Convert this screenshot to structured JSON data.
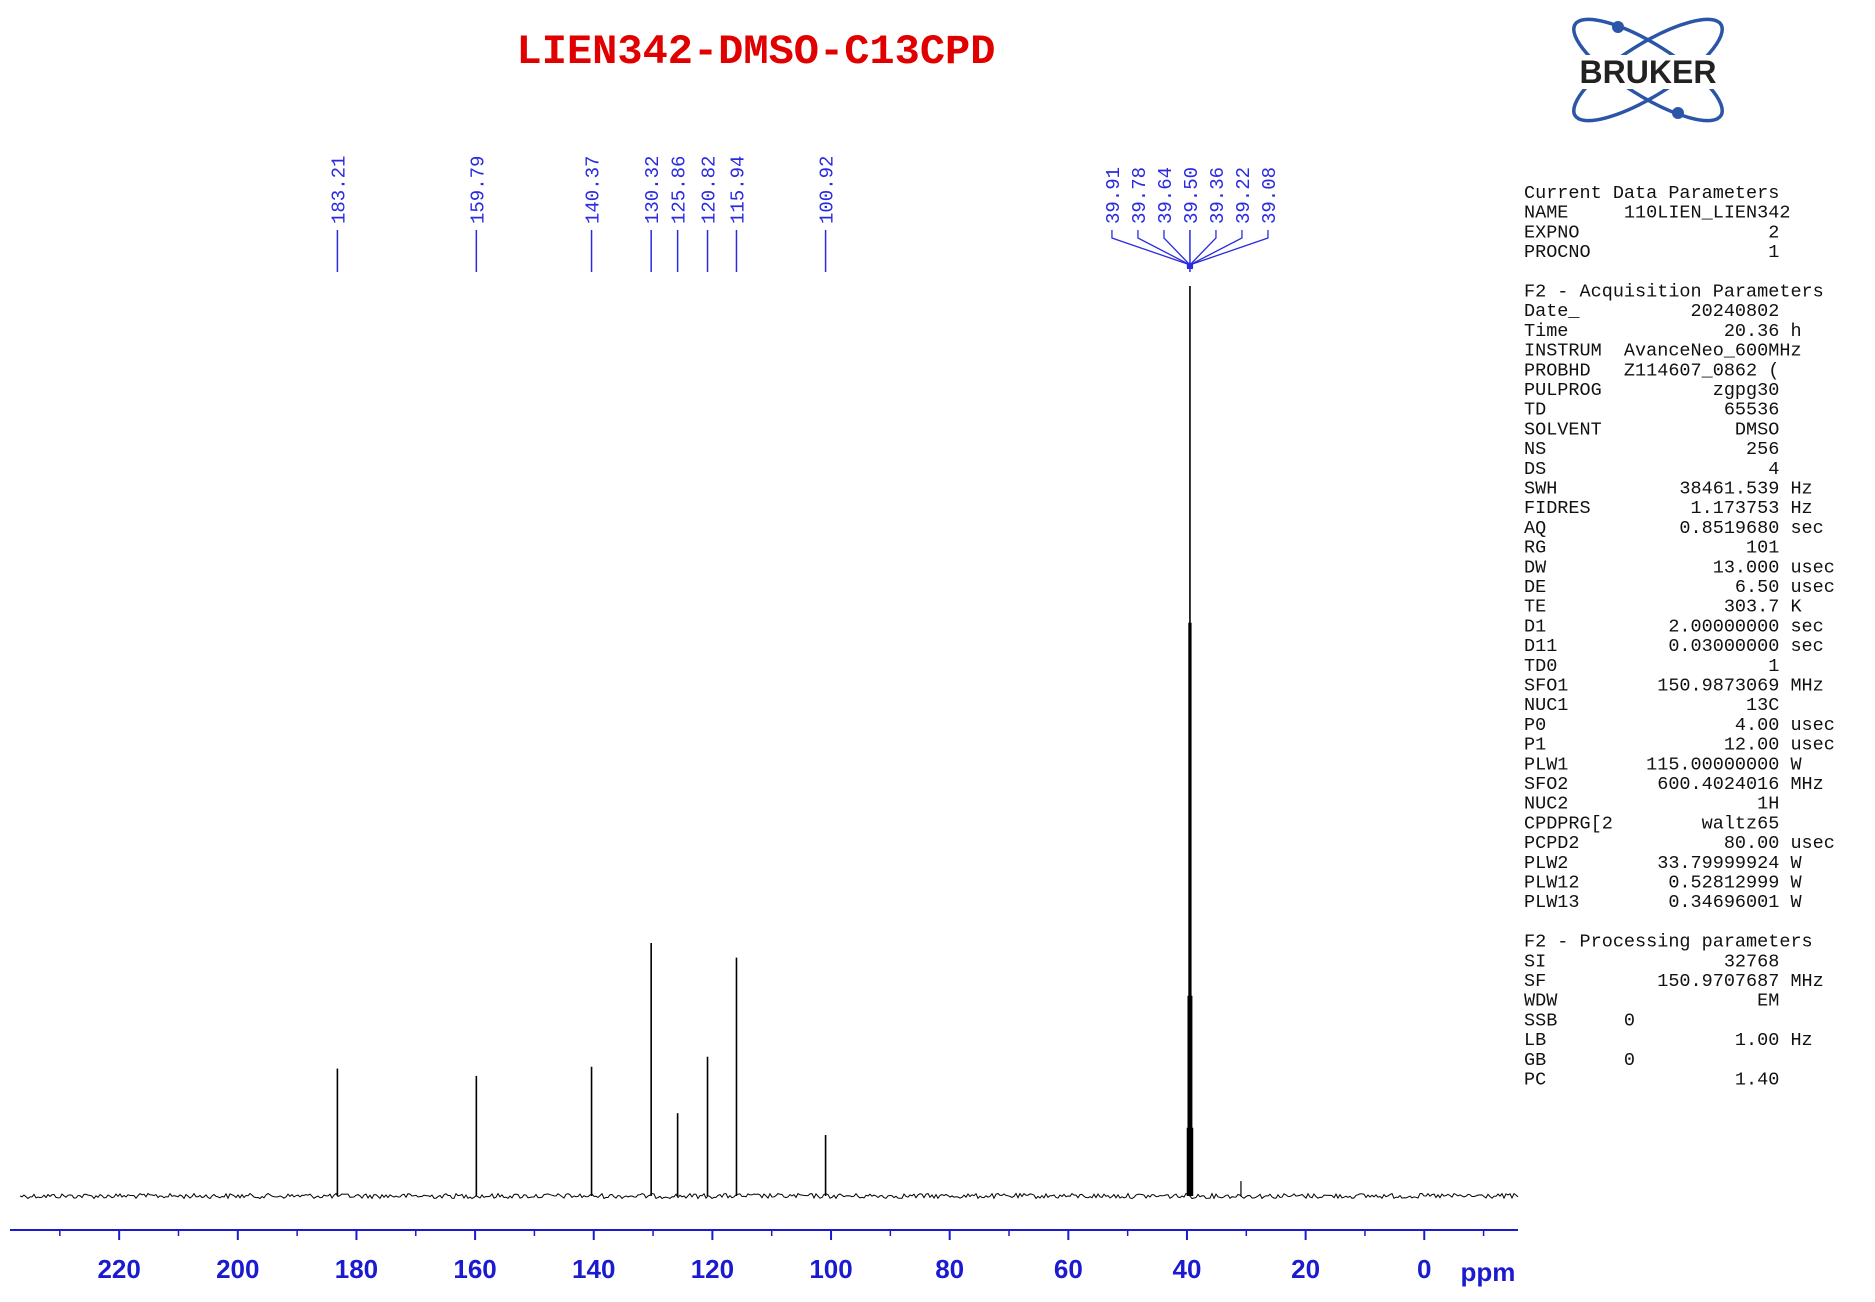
{
  "chart_data": {
    "type": "nmr",
    "title": "LIEN342-DMSO-C13CPD",
    "logo": "BRUKER",
    "xlabel": "ppm",
    "xlim": [
      238.4,
      -15.8
    ],
    "xticks": [
      220,
      200,
      180,
      160,
      140,
      120,
      100,
      80,
      60,
      40,
      20,
      0
    ],
    "xticks_minor": [
      230,
      210,
      190,
      170,
      150,
      130,
      110,
      90,
      70,
      50,
      30,
      10,
      -10
    ],
    "ylim": [
      0,
      100
    ],
    "color": "#000000",
    "label_color": "#2a2ae0",
    "peaks": [
      {
        "ppm": 183.21,
        "label": "183.21",
        "intensity": 14.0
      },
      {
        "ppm": 159.79,
        "label": "159.79",
        "intensity": 13.2
      },
      {
        "ppm": 140.37,
        "label": "140.37",
        "intensity": 14.2
      },
      {
        "ppm": 130.32,
        "label": "130.32",
        "intensity": 27.8
      },
      {
        "ppm": 125.86,
        "label": "125.86",
        "intensity": 9.1
      },
      {
        "ppm": 120.82,
        "label": "120.82",
        "intensity": 15.3
      },
      {
        "ppm": 115.94,
        "label": "115.94",
        "intensity": 26.2
      },
      {
        "ppm": 100.92,
        "label": "100.92",
        "intensity": 6.7
      },
      {
        "ppm": 39.91,
        "label": "39.91",
        "intensity": 7.5
      },
      {
        "ppm": 39.78,
        "label": "39.78",
        "intensity": 22
      },
      {
        "ppm": 39.64,
        "label": "39.64",
        "intensity": 63
      },
      {
        "ppm": 39.5,
        "label": "39.50",
        "intensity": 100
      },
      {
        "ppm": 39.36,
        "label": "39.36",
        "intensity": 63
      },
      {
        "ppm": 39.22,
        "label": "39.22",
        "intensity": 22
      },
      {
        "ppm": 39.08,
        "label": "39.08",
        "intensity": 7.5
      }
    ],
    "minor_peaks": [
      {
        "ppm": 30.9,
        "intensity": 1.2
      }
    ]
  },
  "parameters": [
    {
      "title": "Current Data Parameters",
      "lines": [
        "NAME     110LIEN_LIEN342",
        "EXPNO                 2",
        "PROCNO                1"
      ]
    },
    {
      "title": "F2 - Acquisition Parameters",
      "lines": [
        "Date_          20240802",
        "Time              20.36 h",
        "INSTRUM  AvanceNeo_600MHz",
        "PROBHD   Z114607_0862 (",
        "PULPROG          zgpg30",
        "TD                65536",
        "SOLVENT            DMSO",
        "NS                  256",
        "DS                    4",
        "SWH           38461.539 Hz",
        "FIDRES         1.173753 Hz",
        "AQ            0.8519680 sec",
        "RG                  101",
        "DW               13.000 usec",
        "DE                 6.50 usec",
        "TE                303.7 K",
        "D1           2.00000000 sec",
        "D11          0.03000000 sec",
        "TD0                   1",
        "SFO1        150.9873069 MHz",
        "NUC1                13C",
        "P0                 4.00 usec",
        "P1                12.00 usec",
        "PLW1       115.00000000 W",
        "SFO2        600.4024016 MHz",
        "NUC2                 1H",
        "CPDPRG[2        waltz65",
        "PCPD2             80.00 usec",
        "PLW2        33.79999924 W",
        "PLW12        0.52812999 W",
        "PLW13        0.34696001 W"
      ]
    },
    {
      "title": "F2 - Processing parameters",
      "lines": [
        "SI                32768",
        "SF          150.9707687 MHz",
        "WDW                  EM",
        "SSB      0",
        "LB                 1.00 Hz",
        "GB       0",
        "PC                 1.40"
      ]
    }
  ]
}
